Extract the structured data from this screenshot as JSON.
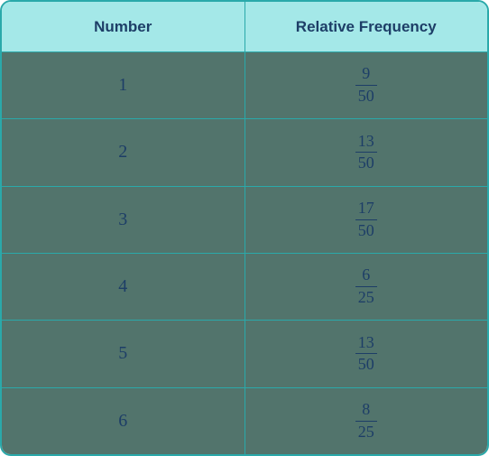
{
  "table": {
    "border_color": "#2aa9aa",
    "border_radius": 12,
    "header_bg": "#a4e8e8",
    "row_bg": "#52746c",
    "text_color": "#1d3e67",
    "columns": [
      "Number",
      "Relative Frequency"
    ],
    "header_fontsize": 17,
    "cell_fontsize": 20,
    "fraction_fontsize": 18,
    "rows": [
      {
        "number": "1",
        "numerator": "9",
        "denominator": "50"
      },
      {
        "number": "2",
        "numerator": "13",
        "denominator": "50"
      },
      {
        "number": "3",
        "numerator": "17",
        "denominator": "50"
      },
      {
        "number": "4",
        "numerator": "6",
        "denominator": "25"
      },
      {
        "number": "5",
        "numerator": "13",
        "denominator": "50"
      },
      {
        "number": "6",
        "numerator": "8",
        "denominator": "25"
      }
    ]
  }
}
